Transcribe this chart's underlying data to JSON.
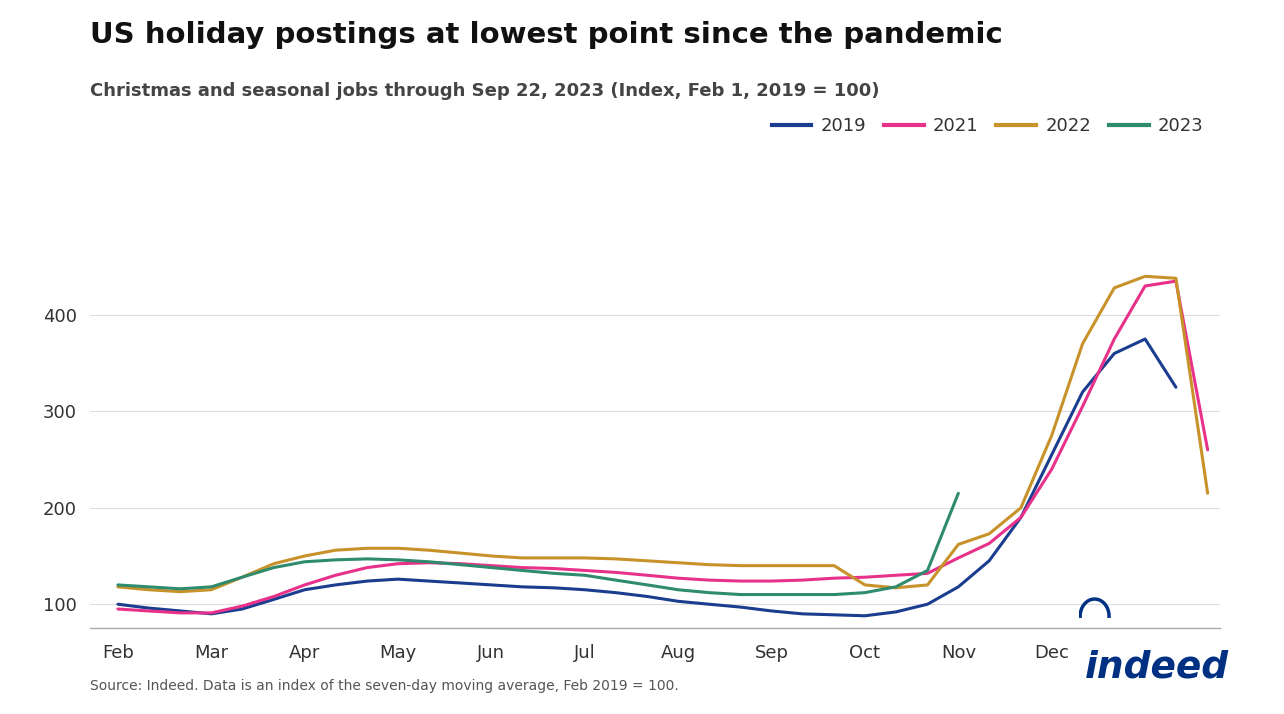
{
  "title": "US holiday postings at lowest point since the pandemic",
  "subtitle": "Christmas and seasonal jobs through Sep 22, 2023 (Index, Feb 1, 2019 = 100)",
  "source_text": "Source: Indeed. Data is an index of the seven-day moving average, Feb 2019 = 100.",
  "background_color": "#ffffff",
  "ylim": [
    75,
    460
  ],
  "yticks": [
    100,
    200,
    300,
    400
  ],
  "xlabel": "",
  "ylabel": "",
  "series": {
    "2019": {
      "color": "#1a3d8f",
      "linewidth": 2.2,
      "x": [
        0,
        0.33,
        0.67,
        1.0,
        1.33,
        1.67,
        2.0,
        2.33,
        2.67,
        3.0,
        3.33,
        3.67,
        4.0,
        4.33,
        4.67,
        5.0,
        5.33,
        5.67,
        6.0,
        6.33,
        6.67,
        7.0,
        7.33,
        7.67,
        8.0,
        8.33,
        8.67,
        9.0,
        9.33,
        9.67,
        10.0,
        10.33,
        10.67,
        11.0,
        11.33
      ],
      "y": [
        100,
        96,
        93,
        90,
        95,
        105,
        115,
        120,
        124,
        126,
        124,
        122,
        120,
        118,
        117,
        115,
        112,
        108,
        103,
        100,
        97,
        93,
        90,
        89,
        88,
        92,
        100,
        118,
        145,
        190,
        255,
        320,
        360,
        375,
        325
      ]
    },
    "2021": {
      "color": "#e8318a",
      "linewidth": 2.2,
      "x": [
        0,
        0.33,
        0.67,
        1.0,
        1.33,
        1.67,
        2.0,
        2.33,
        2.67,
        3.0,
        3.33,
        3.67,
        4.0,
        4.33,
        4.67,
        5.0,
        5.33,
        5.67,
        6.0,
        6.33,
        6.67,
        7.0,
        7.33,
        7.67,
        8.0,
        8.33,
        8.67,
        9.0,
        9.33,
        9.67,
        10.0,
        10.33,
        10.67,
        11.0,
        11.33,
        11.67
      ],
      "y": [
        95,
        93,
        91,
        91,
        98,
        108,
        120,
        130,
        138,
        142,
        143,
        142,
        140,
        138,
        137,
        135,
        133,
        130,
        127,
        125,
        124,
        124,
        125,
        127,
        128,
        130,
        132,
        148,
        163,
        190,
        240,
        305,
        375,
        430,
        435,
        260
      ]
    },
    "2022": {
      "color": "#c8922a",
      "linewidth": 2.2,
      "x": [
        0,
        0.33,
        0.67,
        1.0,
        1.33,
        1.67,
        2.0,
        2.33,
        2.67,
        3.0,
        3.33,
        3.67,
        4.0,
        4.33,
        4.67,
        5.0,
        5.33,
        5.67,
        6.0,
        6.33,
        6.67,
        7.0,
        7.33,
        7.67,
        8.0,
        8.33,
        8.67,
        9.0,
        9.33,
        9.67,
        10.0,
        10.33,
        10.67,
        11.0,
        11.33,
        11.67
      ],
      "y": [
        118,
        115,
        113,
        115,
        128,
        142,
        150,
        156,
        158,
        158,
        156,
        153,
        150,
        148,
        148,
        148,
        147,
        145,
        143,
        141,
        140,
        140,
        140,
        140,
        120,
        117,
        120,
        162,
        173,
        200,
        275,
        370,
        428,
        440,
        438,
        215
      ]
    },
    "2023": {
      "color": "#2e8b6e",
      "linewidth": 2.2,
      "x": [
        0,
        0.33,
        0.67,
        1.0,
        1.33,
        1.67,
        2.0,
        2.33,
        2.67,
        3.0,
        3.33,
        3.67,
        4.0,
        4.33,
        4.67,
        5.0,
        5.33,
        5.67,
        6.0,
        6.33,
        6.67,
        7.0,
        7.33,
        7.67,
        8.0,
        8.33,
        8.67,
        9.0
      ],
      "y": [
        120,
        118,
        116,
        118,
        128,
        138,
        144,
        146,
        147,
        146,
        144,
        141,
        138,
        135,
        132,
        130,
        125,
        120,
        115,
        112,
        110,
        110,
        110,
        110,
        112,
        118,
        135,
        215
      ]
    }
  },
  "xtick_positions": [
    0,
    1,
    2,
    3,
    4,
    5,
    6,
    7,
    8,
    9,
    10,
    11
  ],
  "xtick_labels": [
    "Feb",
    "Mar",
    "Apr",
    "May",
    "Jun",
    "Jul",
    "Aug",
    "Sep",
    "Oct",
    "Nov",
    "Dec",
    ""
  ],
  "legend_labels": [
    "2019",
    "2021",
    "2022",
    "2023"
  ],
  "legend_colors": [
    "#1a3d8f",
    "#e8318a",
    "#c8922a",
    "#2e8b6e"
  ],
  "indeed_blue": "#003082"
}
